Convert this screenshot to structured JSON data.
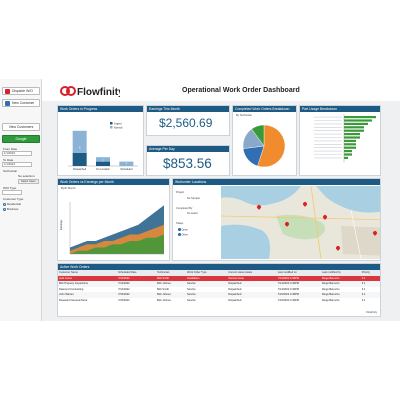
{
  "brand": {
    "name": "Flowfinity",
    "accent": "#d8202a"
  },
  "dashboard_title": "Operational Work Order Dashboard",
  "sidebar": {
    "dispatch_label": "Dispatch W/O",
    "new_customer_label": "New Customer",
    "view_customer_label": "View Customers",
    "google_label": "Google",
    "from_date_label": "From Date",
    "from_date_value": "1/1/2023",
    "to_date_label": "To Date",
    "to_date_value": "1/1/2024",
    "technician_label": "Technician",
    "technician_value": "No selection",
    "select_label": "Select Users",
    "wo_type_label": "W/O Type",
    "customer_type_label": "Customer Type",
    "customer_types": [
      "Residential",
      "Business"
    ]
  },
  "panels": {
    "work_orders_progress": {
      "title": "Work Orders in Progress",
      "legend": [
        "Urgent",
        "Normal"
      ],
      "categories": [
        "Dispatched",
        "On Location",
        "Scheduled"
      ],
      "data_labels": [
        "8",
        "2",
        "1"
      ]
    },
    "earnings": {
      "title": "Earnings This Month",
      "value": "$2,560.69"
    },
    "avg_per_day": {
      "title": "Average Per Day",
      "value": "$853.56"
    },
    "completed_breakdown": {
      "title": "Completed Work Orders Breakdown",
      "subtitle": "By Technician"
    },
    "part_usage": {
      "title": "Part Usage Breakdown"
    },
    "orders_vs_earnings": {
      "title": "Work Orders vs Earnings per Month",
      "subtitle": "By/Pr Month",
      "y_label": "Earnings"
    },
    "workorder_locations": {
      "title": "Workorder Locations",
      "filter_project": "Project",
      "filter_project_value": "No Sample",
      "filter_completed_by": "Completed By",
      "filter_completed_by_value": "No select",
      "filter_status": "Status",
      "filter_status_options": [
        "Open",
        "Other"
      ]
    },
    "active_work_orders": {
      "title": "Active Work Orders",
      "columns": [
        "Customer Name",
        "Scheduled Date",
        "Technician",
        "Work Order Type",
        "Current status status",
        "Last modified on",
        "Last modified by",
        "Priority"
      ],
      "rows": [
        [
          "Jack Jones",
          "7/13/2022",
          "Bob Smith",
          "Installation",
          "Service Issue",
          "7/13/2022 4:46PM",
          "Diego Banuzzo",
          "3.1"
        ],
        [
          "Bob Property Inspections",
          "7/14/2022",
          "Bob Johnes",
          "Service",
          "Dispatched",
          "7/14/2022 4:46PM",
          "Diego Banuzzo",
          "3.1"
        ],
        [
          "Diamond Contracting",
          "7/14/2022",
          "Bob Smith",
          "Service",
          "Dispatched",
          "7/14/2022 4:46PM",
          "Diego Banuzzo",
          "3.1"
        ],
        [
          "John Warren",
          "7/15/2022",
          "Bob Johnes",
          "Service",
          "Dispatched",
          "7/15/2022 4:46PM",
          "Diego Banuzzo",
          "3.1"
        ],
        [
          "Rosewind General Store",
          "7/15/2022",
          "Bob Johnes",
          "Service",
          "Dispatched",
          "7/15/2022 4:46PM",
          "Diego Banuzzo",
          "3.1"
        ]
      ],
      "footer": "Flowfinity"
    }
  },
  "chart_data": [
    {
      "type": "bar",
      "title": "Work Orders in Progress",
      "categories": [
        "Dispatched",
        "On Location",
        "Scheduled"
      ],
      "series": [
        {
          "name": "Urgent",
          "values": [
            3,
            1,
            0
          ]
        },
        {
          "name": "Normal",
          "values": [
            5,
            1,
            1
          ]
        }
      ],
      "ylim": [
        0,
        10
      ]
    },
    {
      "type": "pie",
      "title": "Completed Work Orders Breakdown",
      "values": [
        55,
        18,
        17,
        10
      ],
      "colors": [
        "#f08c2e",
        "#2f6fb2",
        "#8aa9c9",
        "#3a9a3a"
      ]
    },
    {
      "type": "bar",
      "title": "Part Usage Breakdown",
      "categories": [
        "",
        "",
        "",
        "",
        "",
        "",
        "",
        "",
        "",
        "",
        "",
        "",
        ""
      ],
      "values": [
        8,
        7,
        6,
        5,
        5,
        4,
        4,
        3,
        3,
        3,
        2,
        2,
        1
      ]
    },
    {
      "type": "area",
      "title": "Work Orders vs Earnings per Month",
      "x": [
        "1",
        "2",
        "3",
        "4",
        "5",
        "6",
        "7",
        "8",
        "9",
        "10",
        "11",
        "12"
      ],
      "series": [
        {
          "name": "A",
          "values": [
            2,
            3,
            4,
            4,
            5,
            6,
            7,
            8,
            9,
            11,
            13,
            15
          ]
        },
        {
          "name": "B",
          "values": [
            1,
            2,
            3,
            3,
            4,
            4,
            5,
            6,
            6,
            7,
            8,
            9
          ]
        },
        {
          "name": "C",
          "values": [
            0,
            1,
            1,
            2,
            2,
            3,
            3,
            4,
            4,
            5,
            5,
            6
          ]
        }
      ]
    }
  ]
}
